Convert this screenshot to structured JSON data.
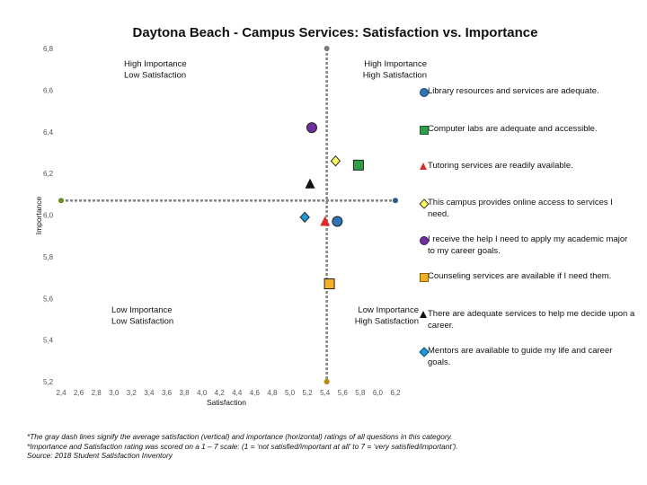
{
  "chart_data": {
    "type": "scatter",
    "title": "Daytona Beach - Campus Services: Satisfaction vs. Importance",
    "xlabel": "Satisfaction",
    "ylabel": "Importance",
    "xlim": [
      2.4,
      6.2
    ],
    "ylim": [
      5.2,
      6.8
    ],
    "xticks": [
      "2,4",
      "2,6",
      "2,8",
      "3,0",
      "3,2",
      "3,4",
      "3,6",
      "3,8",
      "4,0",
      "4,2",
      "4,4",
      "4,6",
      "4,8",
      "5,0",
      "5,2",
      "5,4",
      "5,6",
      "5,8",
      "6,0",
      "6,2"
    ],
    "yticks": [
      "6,8",
      "6,6",
      "6,4",
      "6,2",
      "6,0",
      "5,8",
      "5,6",
      "5,4",
      "5,2"
    ],
    "grid": false,
    "average_satisfaction": 5.42,
    "average_importance": 6.07,
    "quadrant_labels": {
      "top_left": [
        "High Importance",
        "Low Satisfaction"
      ],
      "top_right": [
        "High Importance",
        "High Satisfaction"
      ],
      "bottom_left": [
        "Low Importance",
        "Low Satisfaction"
      ],
      "bottom_right": [
        "Low Importance",
        "High Satisfaction"
      ]
    },
    "legend_position": "right",
    "series": [
      {
        "name": "Library resources and services are adequate.",
        "x": 5.54,
        "y": 5.97,
        "marker": "circle",
        "color": "#2e75b6"
      },
      {
        "name": "Computer labs are adequate and accessible.",
        "x": 5.78,
        "y": 6.24,
        "marker": "square",
        "color": "#2e9e4a"
      },
      {
        "name": "Tutoring services are readily available.",
        "x": 5.4,
        "y": 5.97,
        "marker": "triangle",
        "color": "#e02a2a"
      },
      {
        "name": "This campus provides online access to services I need.",
        "x": 5.52,
        "y": 6.26,
        "marker": "diamond",
        "color": "#ffff66"
      },
      {
        "name": "I receive the help I need to apply my academic major to my career goals.",
        "x": 5.25,
        "y": 6.42,
        "marker": "circle",
        "color": "#7030a0"
      },
      {
        "name": "Counseling services are available if I need them.",
        "x": 5.45,
        "y": 5.67,
        "marker": "square",
        "color": "#f4b025"
      },
      {
        "name": "There are adequate services to help me decide upon a career.",
        "x": 5.23,
        "y": 6.15,
        "marker": "triangle",
        "color": "#111111"
      },
      {
        "name": "Mentors are available to guide my life and career goals.",
        "x": 5.17,
        "y": 5.99,
        "marker": "diamond",
        "color": "#1f9ad6"
      }
    ]
  },
  "footnotes": [
    "*The gray dash lines signify the average satisfaction (vertical) and importance (horizontal) ratings of all questions in this category.",
    "*Importance and Satisfaction rating was scored on a 1 – 7 scale: (1 = ‘not satisfied/important at all’ to 7 = ‘very satisfied/important’).",
    "Source: 2018 Student Satisfaction Inventory"
  ]
}
